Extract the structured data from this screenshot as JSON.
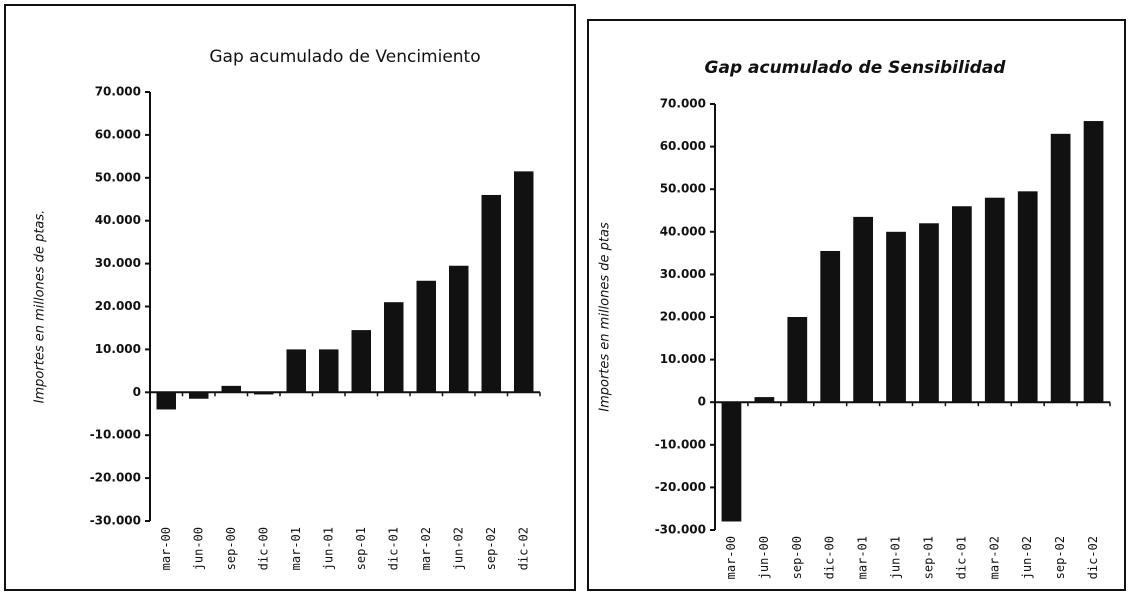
{
  "chart_data": [
    {
      "type": "bar",
      "title": "Gap acumulado de Vencimiento",
      "y_label": "Importes en millones de ptas.",
      "categories": [
        "mar-00",
        "jun-00",
        "sep-00",
        "dic-00",
        "mar-01",
        "jun-01",
        "sep-01",
        "dic-01",
        "mar-02",
        "jun-02",
        "sep-02",
        "dic-02"
      ],
      "values": [
        -4000,
        -1500,
        1500,
        -500,
        10000,
        10000,
        14500,
        21000,
        26000,
        29500,
        46000,
        51500
      ],
      "color": "#111111",
      "ylim": [
        -30000,
        70000
      ],
      "yticks": [
        {
          "value": -30000,
          "label": "-30.000"
        },
        {
          "value": -20000,
          "label": "-20.000"
        },
        {
          "value": -10000,
          "label": "-10.000"
        },
        0,
        {
          "value": 10000,
          "label": "10.000"
        },
        {
          "value": 20000,
          "label": "20.000"
        },
        {
          "value": 30000,
          "label": "30.000"
        },
        {
          "value": 40000,
          "label": "40.000"
        },
        {
          "value": 50000,
          "label": "50.000"
        },
        {
          "value": 60000,
          "label": "60.000"
        },
        {
          "value": 70000,
          "label": "70.000"
        }
      ]
    },
    {
      "type": "bar",
      "title": "Gap acumulado de Sensibilidad",
      "y_label": "Importes en millones de ptas",
      "categories": [
        "mar-00",
        "jun-00",
        "sep-00",
        "dic-00",
        "mar-01",
        "jun-01",
        "sep-01",
        "dic-01",
        "mar-02",
        "jun-02",
        "sep-02",
        "dic-02"
      ],
      "values": [
        -28000,
        1200,
        20000,
        35500,
        43500,
        40000,
        42000,
        46000,
        48000,
        49500,
        63000,
        66000
      ],
      "color": "#111111",
      "ylim": [
        -30000,
        70000
      ],
      "yticks": [
        {
          "value": -30000,
          "label": "-30.000"
        },
        {
          "value": -20000,
          "label": "-20.000"
        },
        {
          "value": -10000,
          "label": "-10.000"
        },
        0,
        {
          "value": 10000,
          "label": "10.000"
        },
        {
          "value": 20000,
          "label": "20.000"
        },
        {
          "value": 30000,
          "label": "30.000"
        },
        {
          "value": 40000,
          "label": "40.000"
        },
        {
          "value": 50000,
          "label": "50.000"
        },
        {
          "value": 60000,
          "label": "60.000"
        },
        {
          "value": 70000,
          "label": "70.000"
        }
      ]
    }
  ]
}
